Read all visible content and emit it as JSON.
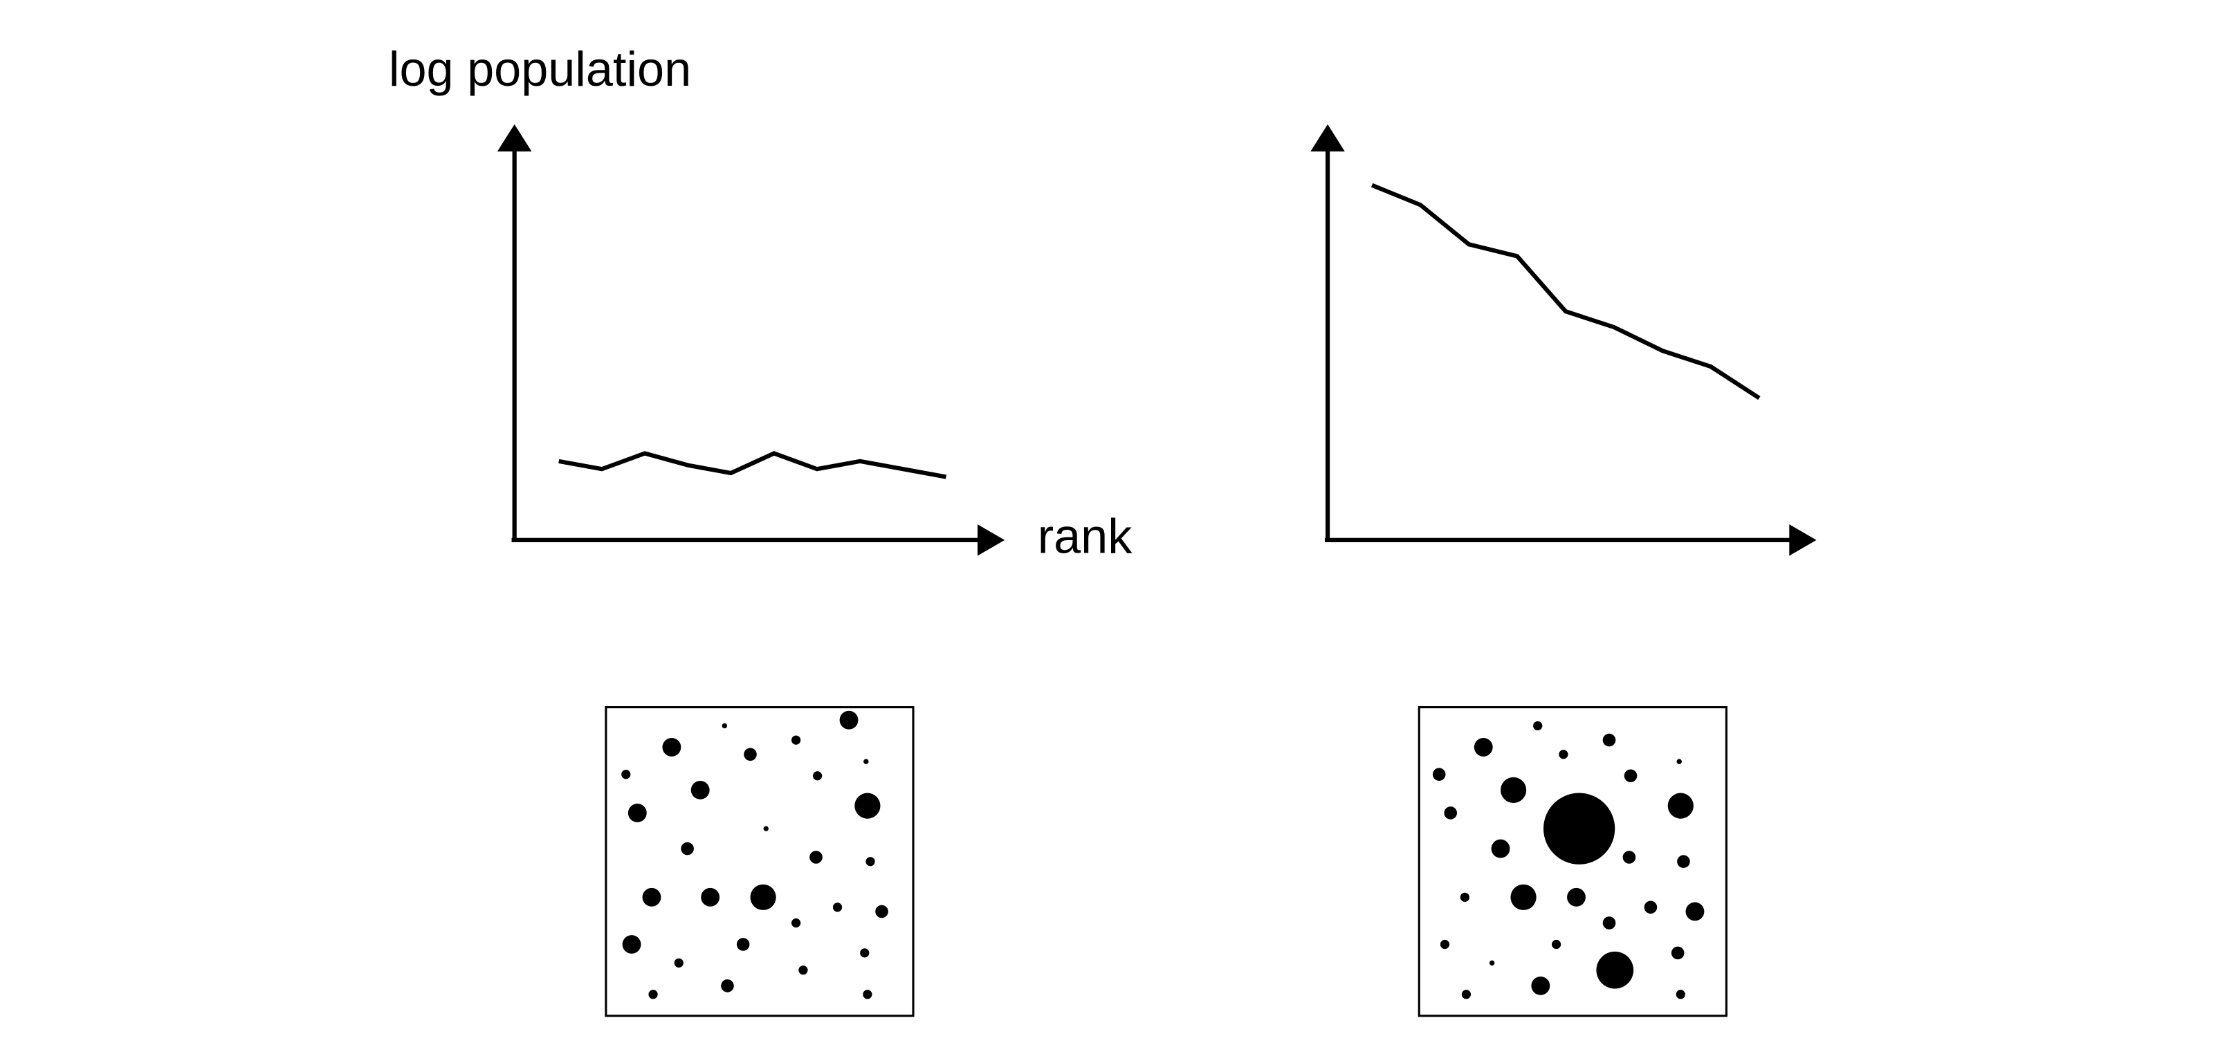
{
  "labels": {
    "y_axis": "log population",
    "x_axis": "rank"
  },
  "colors": {
    "ink": "#000000",
    "background": "#ffffff"
  },
  "panels": [
    {
      "id": "left",
      "line_y": [
        0.2,
        0.18,
        0.22,
        0.19,
        0.17,
        0.22,
        0.18,
        0.2,
        0.18,
        0.16
      ],
      "dot_sizes": [
        4,
        1,
        4,
        2,
        3,
        2,
        1,
        4,
        2,
        4,
        1,
        5,
        3,
        3,
        2,
        4,
        4,
        5,
        2,
        3,
        4,
        3,
        2,
        2,
        2,
        2,
        2,
        3,
        2
      ]
    },
    {
      "id": "right",
      "line_y": [
        0.9,
        0.85,
        0.75,
        0.72,
        0.58,
        0.54,
        0.48,
        0.44,
        0.36
      ],
      "dot_sizes": [
        3,
        4,
        2,
        2,
        3,
        1,
        3,
        5,
        3,
        7,
        3,
        5,
        4,
        3,
        2,
        5,
        4,
        3,
        4,
        2,
        2,
        3,
        1,
        3,
        4,
        2,
        4,
        6,
        2
      ]
    }
  ]
}
